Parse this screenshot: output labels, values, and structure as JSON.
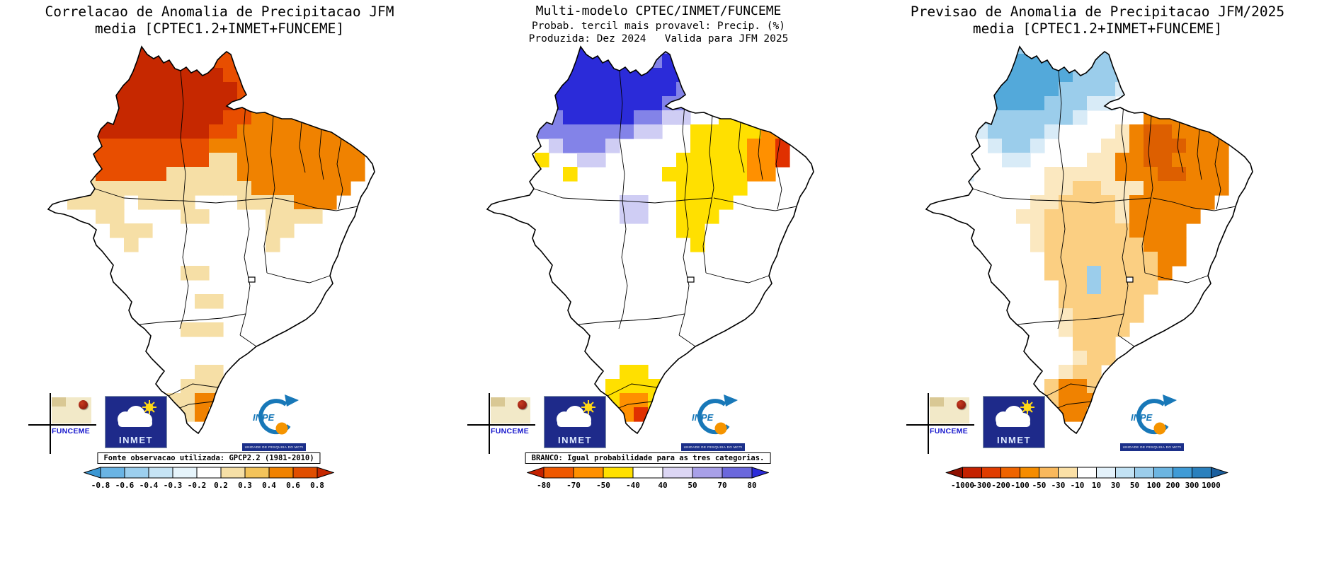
{
  "page": {
    "background": "#ffffff"
  },
  "panels": [
    {
      "name": "correlation",
      "title_lines": [
        "Correlacao de Anomalia de Precipitacao JFM",
        "media [CPTEC1.2+INMET+FUNCEME]"
      ],
      "caption": "Fonte observacao utilizada: GPCP2.2 (1981-2010)"
    },
    {
      "name": "probability",
      "title_lines": [
        "Multi-modelo CPTEC/INMET/FUNCEME",
        "Probab. tercil mais provavel: Precip. (%)",
        "Produzida: Dez 2024   Valida para JFM 2025"
      ],
      "caption": "BRANCO: Igual probabilidade para as tres categorias."
    },
    {
      "name": "anomaly_forecast",
      "title_lines": [
        "Previsao de Anomalia de Precipitacao JFM/2025",
        "media [CPTEC1.2+INMET+FUNCEME]"
      ],
      "caption": null
    }
  ],
  "logos": {
    "funceme_label": "FUNCEME",
    "inmet_label": "INMET",
    "inpe_label": "INPE",
    "inpe_strip": "UNIDADE DE PESQUISA DO MCTI"
  },
  "chart_data": [
    {
      "type": "heatmap",
      "title": "Correlacao de Anomalia de Precipitacao JFM media [CPTEC1.2+INMET+FUNCEME]",
      "region": "Brazil",
      "units": "correlation coefficient",
      "note": "Fonte observacao utilizada: GPCP2.2 (1981-2010)",
      "colorbar": {
        "ticks": [
          "-0.8",
          "-0.6",
          "-0.4",
          "-0.3",
          "-0.2",
          "0.2",
          "0.3",
          "0.4",
          "0.6",
          "0.8"
        ],
        "colors": [
          "#3b97d3",
          "#6ab4e4",
          "#9ccfee",
          "#c6e4f5",
          "#e6f4fb",
          "#ffffff",
          "#f6dfa6",
          "#f3c35a",
          "#f08200",
          "#e04e00",
          "#c62800"
        ]
      },
      "palette": {
        "K": "#c62800",
        "R": "#e84e00",
        "O": "#f08200",
        "c": "#f6dfa6"
      },
      "grid": [
        "......KKKKKKRRR.........",
        ".....KKKKKKKRRR.........",
        "....RKKKKKKKKRRO........",
        "...RRKKKKKKKKKRROO......",
        "..RRKKKKKKKKKKRROOO.....",
        ".RRRKKKKKKKKKRROOOOOO...",
        "RRRRKKKKKKKKRROOOOOOOO..",
        "RRRRRRRRRRRROOOOOOOOOOO.",
        "..cRRRRRRRRRccOOOOOOOOO.",
        "..ccRRRRRcccccOOOOOOOOO.",
        "...ccccccccccccOOOOOOO..",
        "..cccc.cccc...ccccOOO...",
        "....cc....cc....cccc....",
        ".....ccc........cc......",
        "......c.........c.......",
        "........................",
        "..........cc............",
        "........................",
        "...........cc...........",
        "........................",
        "..........ccc...........",
        "........................",
        "........................",
        "...........cc...........",
        "..........cccc..........",
        ".........ccOOc..........",
        "..........cOc...........",
        "........................"
      ]
    },
    {
      "type": "heatmap",
      "title": "Multi-modelo CPTEC/INMET/FUNCEME — Probab. tercil mais provavel: Precip. (%) — Produzida: Dez 2024, Valida para JFM 2025",
      "region": "Brazil",
      "units": "%",
      "note": "BRANCO: Igual probabilidade para as tres categorias.",
      "colorbar": {
        "ticks": [
          "-80",
          "-70",
          "-50",
          "-40",
          "40",
          "50",
          "70",
          "80"
        ],
        "colors": [
          "#c42100",
          "#ef5800",
          "#ff9000",
          "#ffe000",
          "#ffffff",
          "#dcd6f4",
          "#a8a0e8",
          "#6b68dc",
          "#2b2bd9"
        ]
      },
      "palette": {
        "B": "#2b2bd9",
        "b": "#8383e8",
        "l": "#cfcdf4",
        "Y": "#ffe000",
        "O": "#ff9000",
        "R": "#e03000"
      },
      "grid": [
        "......BBBBBB.bb.........",
        ".....bBBBBBBbBBb........",
        "....bBBBBBBBBBBb........",
        "...lbBBBBBBBBBbbl.......",
        "..YlbBBBBBBBBbbl..Y.....",
        ".YYlbbBBBBBbbll..YYYY...",
        ".Y.lbbbbbbbll..YYYYYOO..",
        "..Y..lbbbl.....YYYYOOR..",
        "....Y..ll.....YYYYYOOR..",
        "......Y......YYYYYYOO...",
        "..............YYYYY.....",
        "..........ll..YYYY......",
        "..........ll..YYY.......",
        "..............YY........",
        "...............Y........",
        "........................",
        "........................",
        "........................",
        "........................",
        "........................",
        "........................",
        "........................",
        "........................",
        "..........YY............",
        ".........YYYY...........",
        ".........YOOY...........",
        ".........YORY...........",
        "........................"
      ]
    },
    {
      "type": "heatmap",
      "title": "Previsao de Anomalia de Precipitacao JFM/2025 media [CPTEC1.2+INMET+FUNCEME]",
      "region": "Brazil",
      "units": "mm",
      "note": null,
      "colorbar": {
        "ticks": [
          "-1000",
          "-300",
          "-200",
          "-100",
          "-50",
          "-30",
          "-10",
          "10",
          "30",
          "50",
          "100",
          "200",
          "300",
          "1000"
        ],
        "colors": [
          "#8f1000",
          "#c42100",
          "#e03c00",
          "#ef6400",
          "#f58c00",
          "#f9b85c",
          "#fbe0a6",
          "#ffffff",
          "#e4f2fb",
          "#c2e2f4",
          "#9bcdeb",
          "#6cb5e1",
          "#3f9bd6",
          "#2a80bd",
          "#1a5f9e"
        ]
      },
      "palette": {
        "B": "#53a9da",
        "b": "#9bcdeb",
        "p": "#d8ebf7",
        "O": "#f08200",
        "D": "#dd5f00",
        "y": "#fbcf82",
        "c": "#fbe8c0"
      },
      "grid": [
        "......bbbbbb.bb.........",
        ".....bBBBBbbbbbb........",
        "....bBBBBBBbbbbb........",
        "...pbBBBBBbbbbp.........",
        "..pbbBBBBbbbpp...OO.....",
        ".p.bbbbbbbbp....OOOOO...",
        "..p.pbbbbp....cODDOOOO..",
        ".p...pbbp....ccODDDOOO..",
        "..p...pp....ccOODDOOOO..",
        "...p.....cccccOOODDOOO..",
        ".........ccyycccOOOOOO..",
        "........ccyyyycOOOOOO...",
        ".......ccyyyyycOOOOO....",
        "........cyyyyyyOOOO.....",
        "........cyyyyyyyOOO.....",
        ".........yyyyyyyyOO.....",
        ".........yyybyyyyO......",
        "..........yybyyyy.......",
        "..........yyyyyy........",
        "..........cyyyyy........",
        "..........cyyyy.........",
        "...........yyy..........",
        "...........cyy..........",
        "..........cyy...........",
        ".........yOOy...........",
        ".........yOOOy..........",
        "..........OOy...........",
        "........................"
      ]
    }
  ]
}
